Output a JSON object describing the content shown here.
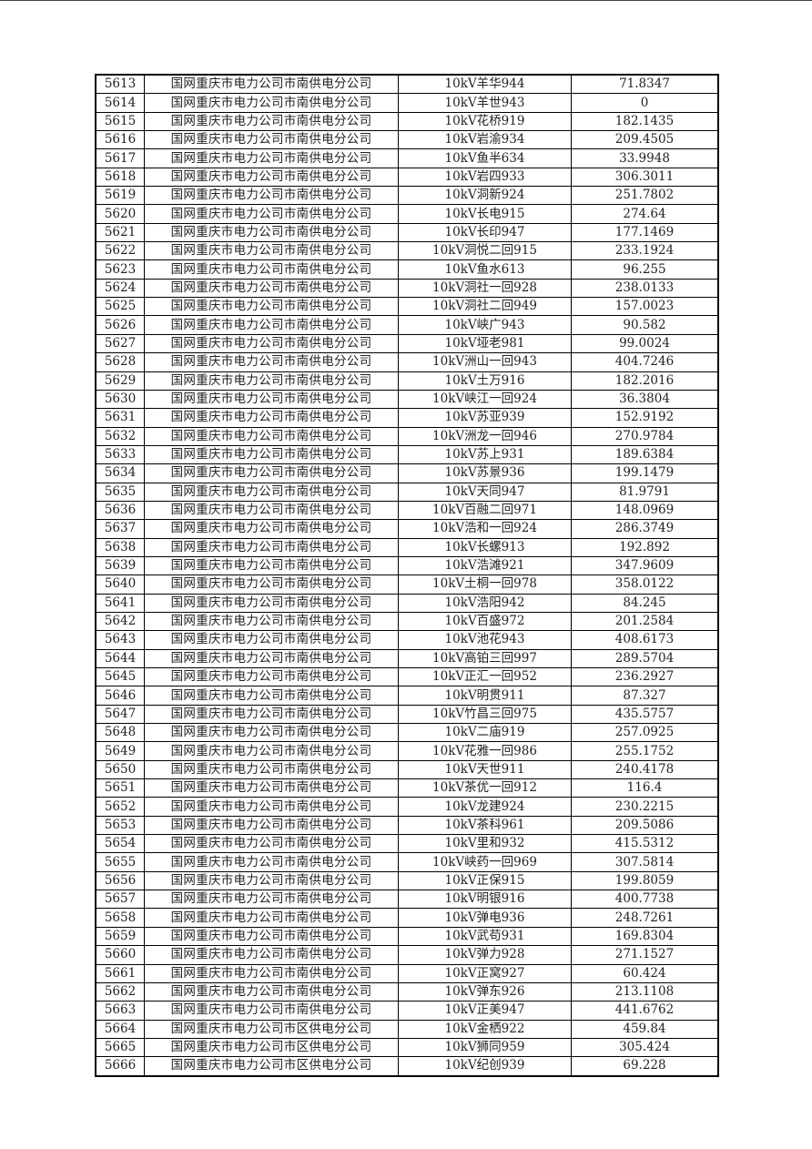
{
  "table": {
    "rows": [
      [
        "5613",
        "国网重庆市电力公司市南供电分公司",
        "10kV羊华944",
        "71.8347"
      ],
      [
        "5614",
        "国网重庆市电力公司市南供电分公司",
        "10kV羊世943",
        "0"
      ],
      [
        "5615",
        "国网重庆市电力公司市南供电分公司",
        "10kV花桥919",
        "182.1435"
      ],
      [
        "5616",
        "国网重庆市电力公司市南供电分公司",
        "10kV岩渝934",
        "209.4505"
      ],
      [
        "5617",
        "国网重庆市电力公司市南供电分公司",
        "10kV鱼半634",
        "33.9948"
      ],
      [
        "5618",
        "国网重庆市电力公司市南供电分公司",
        "10kV岩四933",
        "306.3011"
      ],
      [
        "5619",
        "国网重庆市电力公司市南供电分公司",
        "10kV洞新924",
        "251.7802"
      ],
      [
        "5620",
        "国网重庆市电力公司市南供电分公司",
        "10kV长电915",
        "274.64"
      ],
      [
        "5621",
        "国网重庆市电力公司市南供电分公司",
        "10kV长印947",
        "177.1469"
      ],
      [
        "5622",
        "国网重庆市电力公司市南供电分公司",
        "10kV洞悦二回915",
        "233.1924"
      ],
      [
        "5623",
        "国网重庆市电力公司市南供电分公司",
        "10kV鱼水613",
        "96.255"
      ],
      [
        "5624",
        "国网重庆市电力公司市南供电分公司",
        "10kV洞社一回928",
        "238.0133"
      ],
      [
        "5625",
        "国网重庆市电力公司市南供电分公司",
        "10kV洞社二回949",
        "157.0023"
      ],
      [
        "5626",
        "国网重庆市电力公司市南供电分公司",
        "10kV峡广943",
        "90.582"
      ],
      [
        "5627",
        "国网重庆市电力公司市南供电分公司",
        "10kV垭老981",
        "99.0024"
      ],
      [
        "5628",
        "国网重庆市电力公司市南供电分公司",
        "10kV洲山一回943",
        "404.7246"
      ],
      [
        "5629",
        "国网重庆市电力公司市南供电分公司",
        "10kV土万916",
        "182.2016"
      ],
      [
        "5630",
        "国网重庆市电力公司市南供电分公司",
        "10kV峡江一回924",
        "36.3804"
      ],
      [
        "5631",
        "国网重庆市电力公司市南供电分公司",
        "10kV苏亚939",
        "152.9192"
      ],
      [
        "5632",
        "国网重庆市电力公司市南供电分公司",
        "10kV洲龙一回946",
        "270.9784"
      ],
      [
        "5633",
        "国网重庆市电力公司市南供电分公司",
        "10kV苏上931",
        "189.6384"
      ],
      [
        "5634",
        "国网重庆市电力公司市南供电分公司",
        "10kV苏景936",
        "199.1479"
      ],
      [
        "5635",
        "国网重庆市电力公司市南供电分公司",
        "10kV天同947",
        "81.9791"
      ],
      [
        "5636",
        "国网重庆市电力公司市南供电分公司",
        "10kV百融二回971",
        "148.0969"
      ],
      [
        "5637",
        "国网重庆市电力公司市南供电分公司",
        "10kV浩和一回924",
        "286.3749"
      ],
      [
        "5638",
        "国网重庆市电力公司市南供电分公司",
        "10kV长螺913",
        "192.892"
      ],
      [
        "5639",
        "国网重庆市电力公司市南供电分公司",
        "10kV浩滩921",
        "347.9609"
      ],
      [
        "5640",
        "国网重庆市电力公司市南供电分公司",
        "10kV土桐一回978",
        "358.0122"
      ],
      [
        "5641",
        "国网重庆市电力公司市南供电分公司",
        "10kV浩阳942",
        "84.245"
      ],
      [
        "5642",
        "国网重庆市电力公司市南供电分公司",
        "10kV百盛972",
        "201.2584"
      ],
      [
        "5643",
        "国网重庆市电力公司市南供电分公司",
        "10kV池花943",
        "408.6173"
      ],
      [
        "5644",
        "国网重庆市电力公司市南供电分公司",
        "10kV高铂三回997",
        "289.5704"
      ],
      [
        "5645",
        "国网重庆市电力公司市南供电分公司",
        "10kV正汇一回952",
        "236.2927"
      ],
      [
        "5646",
        "国网重庆市电力公司市南供电分公司",
        "10kV明贯911",
        "87.327"
      ],
      [
        "5647",
        "国网重庆市电力公司市南供电分公司",
        "10kV竹昌三回975",
        "435.5757"
      ],
      [
        "5648",
        "国网重庆市电力公司市南供电分公司",
        "10kV二庙919",
        "257.0925"
      ],
      [
        "5649",
        "国网重庆市电力公司市南供电分公司",
        "10kV花雅一回986",
        "255.1752"
      ],
      [
        "5650",
        "国网重庆市电力公司市南供电分公司",
        "10kV天世911",
        "240.4178"
      ],
      [
        "5651",
        "国网重庆市电力公司市南供电分公司",
        "10kV茶优一回912",
        "116.4"
      ],
      [
        "5652",
        "国网重庆市电力公司市南供电分公司",
        "10kV龙建924",
        "230.2215"
      ],
      [
        "5653",
        "国网重庆市电力公司市南供电分公司",
        "10kV茶科961",
        "209.5086"
      ],
      [
        "5654",
        "国网重庆市电力公司市南供电分公司",
        "10kV里和932",
        "415.5312"
      ],
      [
        "5655",
        "国网重庆市电力公司市南供电分公司",
        "10kV峡药一回969",
        "307.5814"
      ],
      [
        "5656",
        "国网重庆市电力公司市南供电分公司",
        "10kV正保915",
        "199.8059"
      ],
      [
        "5657",
        "国网重庆市电力公司市南供电分公司",
        "10kV明银916",
        "400.7738"
      ],
      [
        "5658",
        "国网重庆市电力公司市南供电分公司",
        "10kV弹电936",
        "248.7261"
      ],
      [
        "5659",
        "国网重庆市电力公司市南供电分公司",
        "10kV武苟931",
        "169.8304"
      ],
      [
        "5660",
        "国网重庆市电力公司市南供电分公司",
        "10kV弹力928",
        "271.1527"
      ],
      [
        "5661",
        "国网重庆市电力公司市南供电分公司",
        "10kV正窝927",
        "60.424"
      ],
      [
        "5662",
        "国网重庆市电力公司市南供电分公司",
        "10kV弹东926",
        "213.1108"
      ],
      [
        "5663",
        "国网重庆市电力公司市南供电分公司",
        "10kV正美947",
        "441.6762"
      ],
      [
        "5664",
        "国网重庆市电力公司市区供电分公司",
        "10kV金栖922",
        "459.84"
      ],
      [
        "5665",
        "国网重庆市电力公司市区供电分公司",
        "10kV狮同959",
        "305.424"
      ],
      [
        "5666",
        "国网重庆市电力公司市区供电分公司",
        "10kV纪创939",
        "69.228"
      ]
    ]
  }
}
